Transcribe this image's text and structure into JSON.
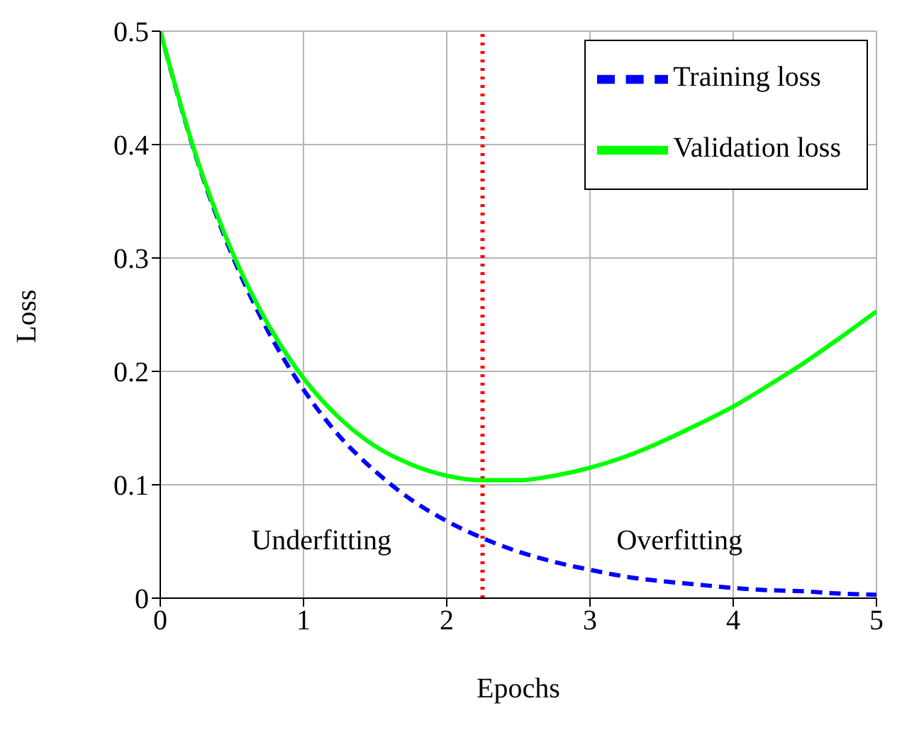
{
  "chart_data": {
    "type": "line",
    "xlabel": "Epochs",
    "ylabel": "Loss",
    "x": [
      0,
      0.25,
      0.5,
      0.75,
      1,
      1.25,
      1.5,
      1.75,
      2,
      2.25,
      2.5,
      2.75,
      3,
      3.25,
      3.5,
      3.75,
      4,
      4.25,
      4.5,
      4.75,
      5
    ],
    "series": [
      {
        "name": "Training loss",
        "color": "#0000ff",
        "line_style": "dashed",
        "values": [
          0.5,
          0.389,
          0.303,
          0.236,
          0.184,
          0.143,
          0.112,
          0.087,
          0.068,
          0.053,
          0.041,
          0.032,
          0.025,
          0.019,
          0.015,
          0.012,
          0.009,
          0.007,
          0.006,
          0.004,
          0.003
        ]
      },
      {
        "name": "Validation loss",
        "color": "#00ff00",
        "line_style": "solid",
        "values": [
          0.5,
          0.39,
          0.306,
          0.242,
          0.194,
          0.159,
          0.134,
          0.118,
          0.108,
          0.104,
          0.104,
          0.108,
          0.115,
          0.125,
          0.138,
          0.153,
          0.169,
          0.188,
          0.208,
          0.23,
          0.253
        ]
      }
    ],
    "xlim": [
      0,
      5
    ],
    "xticks": [
      0,
      1,
      2,
      3,
      4,
      5
    ],
    "ylim": [
      0,
      0.5
    ],
    "yticks": [
      0,
      0.1,
      0.2,
      0.3,
      0.4,
      0.5
    ],
    "ref_lines": [
      {
        "axis": "x",
        "value": 2.25,
        "color": "#ff0000",
        "line_style": "dotted"
      }
    ],
    "annotations": [
      "Underfitting",
      "Overfitting"
    ],
    "grid": true,
    "legend": "top right",
    "marker": "none"
  }
}
